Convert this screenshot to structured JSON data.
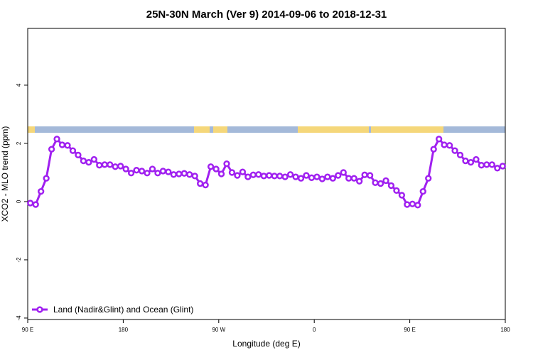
{
  "chart_data": {
    "type": "line",
    "title": "25N-30N March (Ver 9)   2014-09-06 to 2018-12-31",
    "xlabel": "Longitude (deg E)",
    "ylabel": "XCO2 - MLO trend (ppm)",
    "xlim": [
      90,
      540
    ],
    "ylim": [
      -4.05,
      5.95
    ],
    "xticks": [
      {
        "value": 90,
        "label": "90 E"
      },
      180,
      {
        "value": 270,
        "label": "90 W"
      },
      {
        "value": 360,
        "label": "0"
      },
      {
        "value": 450,
        "label": "90 E"
      },
      {
        "value": 540,
        "label": "180"
      }
    ],
    "yticks": [
      -4,
      -2,
      0,
      2,
      4
    ],
    "legend": "bottomleft",
    "x": [
      92.5,
      97.5,
      102.5,
      107.5,
      112.5,
      117.5,
      122.5,
      127.5,
      132.5,
      137.5,
      142.5,
      147.5,
      152.5,
      157.5,
      162.5,
      167.5,
      172.5,
      177.5,
      182.5,
      187.5,
      192.5,
      197.5,
      202.5,
      207.5,
      212.5,
      217.5,
      222.5,
      227.5,
      232.5,
      237.5,
      242.5,
      247.5,
      252.5,
      257.5,
      262.5,
      267.5,
      272.5,
      277.5,
      282.5,
      287.5,
      292.5,
      297.5,
      302.5,
      307.5,
      312.5,
      317.5,
      322.5,
      327.5,
      332.5,
      337.5,
      342.5,
      347.5,
      352.5,
      357.5,
      362.5,
      367.5,
      372.5,
      377.5,
      382.5,
      387.5,
      392.5,
      397.5,
      402.5,
      407.5,
      412.5,
      417.5,
      422.5,
      427.5,
      432.5,
      437.5,
      442.5,
      447.5,
      452.5,
      457.5,
      462.5,
      467.5,
      472.5,
      477.5,
      482.5,
      487.5,
      492.5,
      497.5,
      502.5,
      507.5,
      512.5,
      517.5,
      522.5,
      527.5,
      532.5,
      537.5
    ],
    "series": [
      {
        "name": "Land (Nadir&Glint) and Ocean (Glint)",
        "color": "#a020f0",
        "values": [
          -0.05,
          -0.1,
          0.35,
          0.8,
          1.8,
          2.15,
          1.95,
          1.93,
          1.75,
          1.6,
          1.4,
          1.35,
          1.45,
          1.25,
          1.27,
          1.27,
          1.2,
          1.22,
          1.12,
          0.98,
          1.08,
          1.05,
          0.98,
          1.12,
          0.98,
          1.05,
          1.02,
          0.93,
          0.95,
          0.97,
          0.93,
          0.88,
          0.62,
          0.57,
          1.2,
          1.12,
          0.95,
          1.3,
          1.0,
          0.9,
          1.02,
          0.85,
          0.92,
          0.93,
          0.88,
          0.9,
          0.88,
          0.88,
          0.85,
          0.93,
          0.85,
          0.8,
          0.9,
          0.82,
          0.85,
          0.78,
          0.85,
          0.8,
          0.9,
          1.0,
          0.8,
          0.8,
          0.7,
          0.92,
          0.9,
          0.65,
          0.62,
          0.72,
          0.55,
          0.38,
          0.22,
          -0.1,
          -0.08,
          -0.12,
          0.35,
          0.8,
          1.8,
          2.15,
          1.95,
          1.93,
          1.75,
          1.6,
          1.4,
          1.35,
          1.45,
          1.25,
          1.27,
          1.27,
          1.15,
          1.22
        ]
      }
    ]
  }
}
